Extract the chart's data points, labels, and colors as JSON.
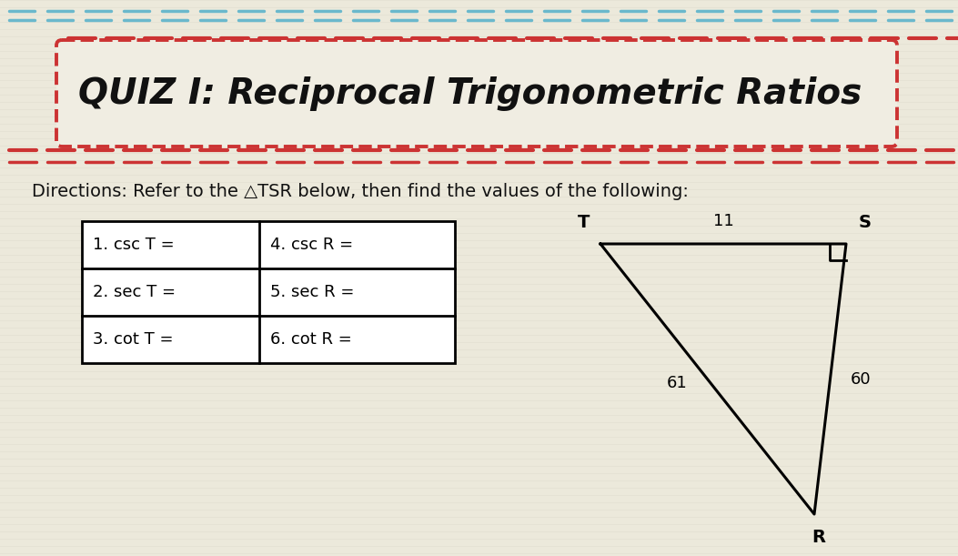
{
  "title": "QUIZ I: Reciprocal Trigonometric Ratios",
  "directions": "Directions: Refer to the △TSR below, then find the values of the following:",
  "bg_color": "#ece9db",
  "stripe_color": "#e0ddd0",
  "title_box_border_color": "#cc3333",
  "title_box_fill": "#f0ede2",
  "title_text_color": "#111111",
  "table_rows_col1": [
    "1. csc T =",
    "2. sec T =",
    "3. cot T ="
  ],
  "table_rows_col2": [
    "4. csc R =",
    "5. sec R =",
    "6. cot R ="
  ],
  "dashed_line_color_top": "#6ab8cc",
  "dashed_line_color_bottom": "#cc3333",
  "directions_fontsize": 14,
  "title_fontsize": 28,
  "table_fontsize": 13,
  "tri_label_T": "T",
  "tri_label_S": "S",
  "tri_label_R": "R",
  "tri_side_TS": "11",
  "tri_side_SR": "60",
  "tri_side_TR": "61"
}
